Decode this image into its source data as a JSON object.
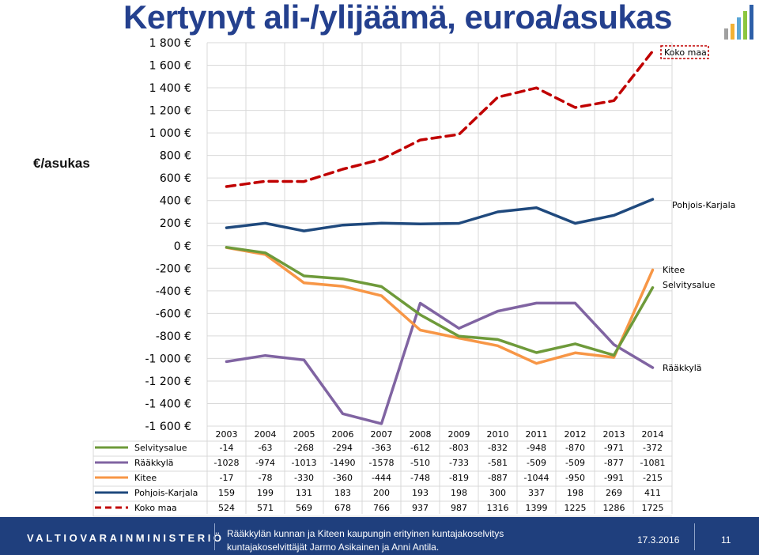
{
  "title": "Kertynyt ali-/ylijäämä, euroa/asukas",
  "unit_label": "€/asukas",
  "logo": {
    "icon": "bar-logo-icon",
    "colors": [
      "#a0a0a0",
      "#f2b134",
      "#5aa6d6",
      "#8cc63f",
      "#2e5fa8"
    ]
  },
  "chart_data": {
    "type": "line",
    "x": [
      "2003",
      "2004",
      "2005",
      "2006",
      "2007",
      "2008",
      "2009",
      "2010",
      "2011",
      "2012",
      "2013",
      "2014"
    ],
    "ylim": [
      -1600,
      1800
    ],
    "yticks": [
      "1 800 €",
      "1 600 €",
      "1 400 €",
      "1 200 €",
      "1 000 €",
      "800 €",
      "600 €",
      "400 €",
      "200 €",
      "0 €",
      "-200 €",
      "-400 €",
      "-600 €",
      "-800 €",
      "-1 000 €",
      "-1 200 €",
      "-1 400 €",
      "-1 600 €"
    ],
    "grid": true,
    "series": [
      {
        "name": "Selvitysalue",
        "color": "#6e9a3a",
        "dash": false,
        "end_label": "Selvitysalue",
        "values": [
          -14,
          -63,
          -268,
          -294,
          -363,
          -612,
          -803,
          -832,
          -948,
          -870,
          -971,
          -372
        ],
        "table": [
          "-14",
          "-63",
          "-268",
          "-294",
          "-363",
          "-612",
          "-803",
          "-832",
          "-948",
          "-870",
          "-971",
          "-372"
        ]
      },
      {
        "name": "Rääkkylä",
        "color": "#8064a2",
        "dash": false,
        "end_label": "Rääkkylä",
        "values": [
          -1028,
          -974,
          -1013,
          -1490,
          -1578,
          -510,
          -733,
          -581,
          -509,
          -509,
          -877,
          -1081
        ],
        "table": [
          "-1028",
          "-974",
          "-1013",
          "-1490",
          "-1578",
          "-510",
          "-733",
          "-581",
          "-509",
          "-509",
          "-877",
          "-1081"
        ]
      },
      {
        "name": "Kitee",
        "color": "#f79646",
        "dash": false,
        "end_label": "Kitee",
        "values": [
          -17,
          -78,
          -330,
          -360,
          -444,
          -748,
          -819,
          -887,
          -1044,
          -950,
          -991,
          -215
        ],
        "table": [
          "-17",
          "-78",
          "-330",
          "-360",
          "-444",
          "-748",
          "-819",
          "-887",
          "-1044",
          "-950",
          "-991",
          "-215"
        ]
      },
      {
        "name": "Pohjois-Karjala",
        "color": "#1f497d",
        "dash": false,
        "end_label": "Pohjois-Karjala",
        "values": [
          159,
          199,
          131,
          183,
          200,
          193,
          198,
          300,
          337,
          198,
          269,
          411
        ],
        "table": [
          "159",
          "199",
          "131",
          "183",
          "200",
          "193",
          "198",
          "300",
          "337",
          "198",
          "269",
          "411"
        ]
      },
      {
        "name": "Koko maa",
        "color": "#c00000",
        "dash": true,
        "end_label": "Koko maa",
        "values": [
          524,
          571,
          569,
          678,
          766,
          937,
          987,
          1316,
          1399,
          1225,
          1286,
          1725
        ],
        "table": [
          "524",
          "571",
          "569",
          "678",
          "766",
          "937",
          "987",
          "1316",
          "1399",
          "1225",
          "1286",
          "1725"
        ]
      }
    ]
  },
  "footer": {
    "ministry": "VALTIOVARAINMINISTERIÖ",
    "source_line1": "Rääkkylän kunnan ja Kiteen kaupungin erityinen kuntajakoselvitys",
    "source_line2": "kuntajakoselvittäjät Jarmo Asikainen ja Anni Antila.",
    "date": "17.3.2016",
    "page": "11"
  }
}
